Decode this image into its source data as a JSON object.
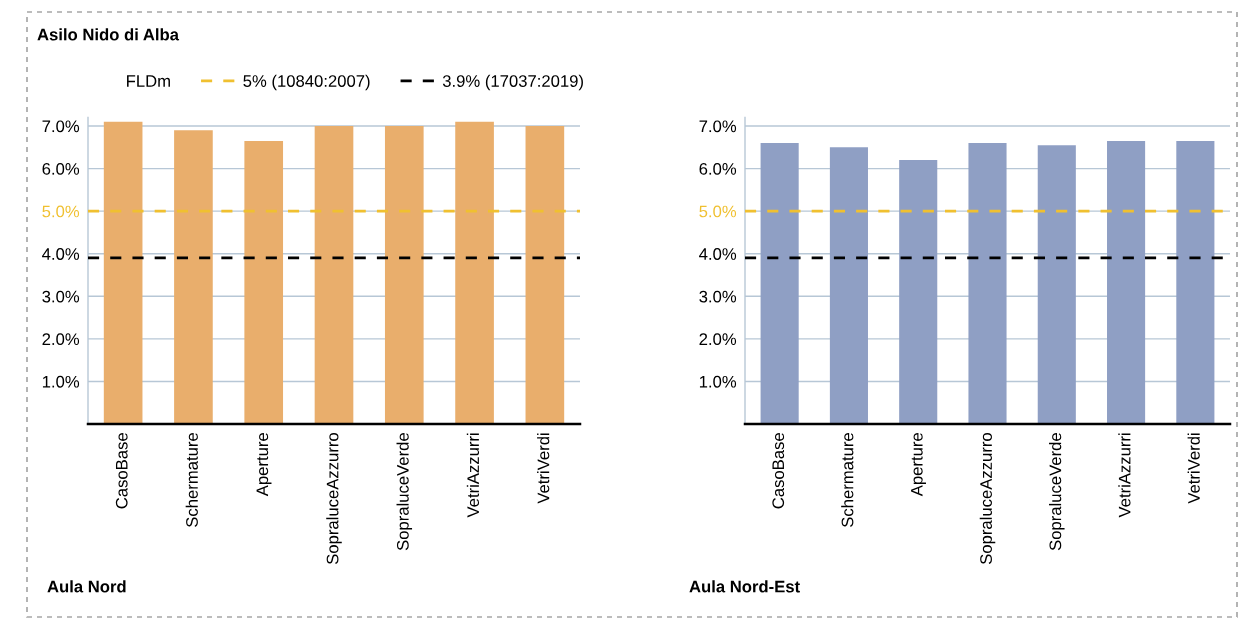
{
  "chart_data": [
    {
      "type": "bar",
      "title": "Asilo Nido di Alba",
      "xlabel": "Aula Nord",
      "categories": [
        "CasoBase",
        "Schermature",
        "Aperture",
        "SopraluceAzzurro",
        "SopraluceVerde",
        "VetriAzzurri",
        "VetriVerdi"
      ],
      "values": [
        7.1,
        6.9,
        6.65,
        7.0,
        7.0,
        7.1,
        7.0
      ],
      "color": "#e9ae6c",
      "ylim": [
        0,
        7.2
      ],
      "yticks": [
        {
          "value": 1,
          "label": "1.0%"
        },
        {
          "value": 2,
          "label": "2.0%"
        },
        {
          "value": 3,
          "label": "3.0%"
        },
        {
          "value": 4,
          "label": "4.0%"
        },
        {
          "value": 5,
          "label": "5.0%"
        },
        {
          "value": 6,
          "label": "6.0%"
        },
        {
          "value": 7,
          "label": "7.0%"
        }
      ],
      "grid": "y",
      "legend": "top",
      "legend_title": "FLDm",
      "ref_lines": [
        {
          "axis": "y",
          "value": 5,
          "label": "5% (10840:2007)",
          "color": "#f0c030",
          "line_style": "dashed"
        },
        {
          "axis": "y",
          "value": 3.9,
          "label": "3.9% (17037:2019)",
          "color": "#000000",
          "line_style": "dashed"
        }
      ]
    },
    {
      "type": "bar",
      "xlabel": "Aula Nord-Est",
      "categories": [
        "CasoBase",
        "Schermature",
        "Aperture",
        "SopraluceAzzurro",
        "SopraluceVerde",
        "VetriAzzurri",
        "VetriVerdi"
      ],
      "values": [
        6.6,
        6.5,
        6.2,
        6.6,
        6.55,
        6.65,
        6.65
      ],
      "color": "#8f9fc4",
      "ylim": [
        0,
        7.2
      ],
      "yticks": [
        {
          "value": 1,
          "label": "1.0%"
        },
        {
          "value": 2,
          "label": "2.0%"
        },
        {
          "value": 3,
          "label": "3.0%"
        },
        {
          "value": 4,
          "label": "4.0%"
        },
        {
          "value": 5,
          "label": "5.0%"
        },
        {
          "value": 6,
          "label": "6.0%"
        },
        {
          "value": 7,
          "label": "7.0%"
        }
      ],
      "grid": "y",
      "ref_lines": [
        {
          "axis": "y",
          "value": 5,
          "color": "#f0c030",
          "line_style": "dashed"
        },
        {
          "axis": "y",
          "value": 3.9,
          "color": "#000000",
          "line_style": "dashed"
        }
      ]
    }
  ]
}
